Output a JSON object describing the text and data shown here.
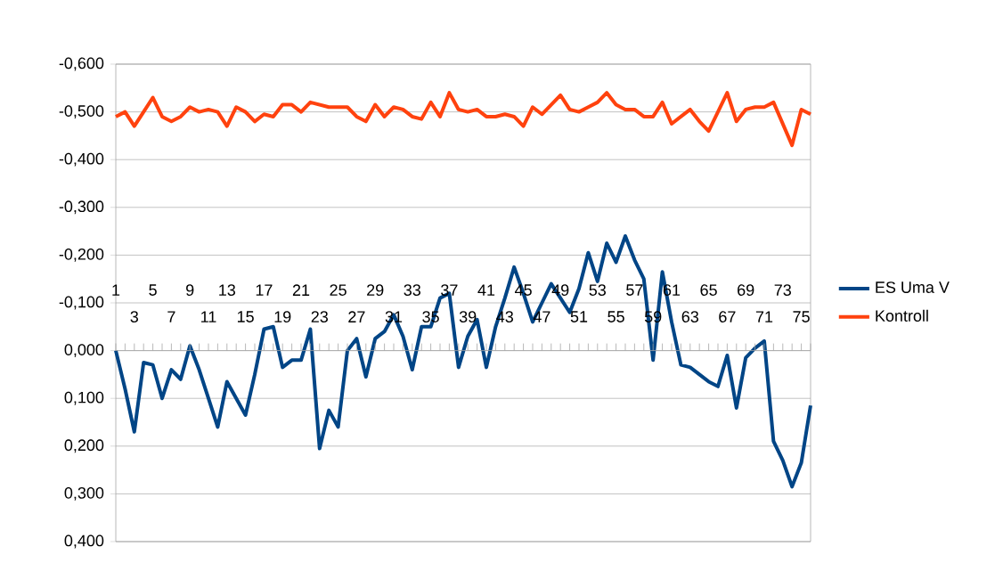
{
  "chart_data": {
    "type": "line",
    "categories": [
      "1",
      null,
      "3",
      null,
      "5",
      null,
      "7",
      null,
      "9",
      null,
      "11",
      null,
      "13",
      null,
      "15",
      null,
      "17",
      null,
      "19",
      null,
      "21",
      null,
      "23",
      null,
      "25",
      null,
      "27",
      null,
      "29",
      null,
      "31",
      null,
      "33",
      null,
      "35",
      null,
      "37",
      null,
      "39",
      null,
      "41",
      null,
      "43",
      null,
      "45",
      null,
      "47",
      null,
      "49",
      null,
      "51",
      null,
      "53",
      null,
      "55",
      null,
      "57",
      null,
      "59",
      null,
      "61",
      null,
      "63",
      null,
      "65",
      null,
      "67",
      null,
      "69",
      null,
      "71",
      null,
      "73",
      null,
      "75",
      null
    ],
    "series": [
      {
        "name": "ES Uma V",
        "color": "#004586",
        "values": [
          0.0,
          0.08,
          0.17,
          0.025,
          0.03,
          0.1,
          0.04,
          0.06,
          -0.01,
          0.04,
          0.1,
          0.16,
          0.065,
          0.1,
          0.135,
          0.05,
          -0.045,
          -0.05,
          0.035,
          0.02,
          0.02,
          -0.045,
          0.205,
          0.125,
          0.16,
          0.0,
          -0.025,
          0.055,
          -0.025,
          -0.04,
          -0.075,
          -0.03,
          0.04,
          -0.05,
          -0.05,
          -0.11,
          -0.12,
          0.035,
          -0.03,
          -0.065,
          0.035,
          -0.05,
          -0.11,
          -0.175,
          -0.12,
          -0.06,
          -0.1,
          -0.14,
          -0.11,
          -0.08,
          -0.13,
          -0.205,
          -0.145,
          -0.225,
          -0.185,
          -0.24,
          -0.19,
          -0.15,
          0.02,
          -0.165,
          -0.06,
          0.03,
          0.035,
          0.05,
          0.065,
          0.075,
          0.01,
          0.12,
          0.015,
          -0.005,
          -0.02,
          0.19,
          0.23,
          0.285,
          0.235,
          0.115
        ]
      },
      {
        "name": "Kontroll",
        "color": "#ff420e",
        "values": [
          -0.49,
          -0.5,
          -0.47,
          -0.5,
          -0.53,
          -0.49,
          -0.48,
          -0.49,
          -0.51,
          -0.5,
          -0.505,
          -0.5,
          -0.47,
          -0.51,
          -0.5,
          -0.48,
          -0.495,
          -0.49,
          -0.515,
          -0.515,
          -0.5,
          -0.52,
          -0.515,
          -0.51,
          -0.51,
          -0.51,
          -0.49,
          -0.48,
          -0.515,
          -0.49,
          -0.51,
          -0.505,
          -0.49,
          -0.485,
          -0.52,
          -0.49,
          -0.54,
          -0.505,
          -0.5,
          -0.505,
          -0.49,
          -0.49,
          -0.495,
          -0.49,
          -0.47,
          -0.51,
          -0.495,
          -0.515,
          -0.535,
          -0.505,
          -0.5,
          -0.51,
          -0.52,
          -0.54,
          -0.515,
          -0.505,
          -0.505,
          -0.49,
          -0.49,
          -0.52,
          -0.475,
          -0.49,
          -0.505,
          -0.48,
          -0.46,
          -0.5,
          -0.54,
          -0.48,
          -0.505,
          -0.51,
          -0.51,
          -0.52,
          -0.475,
          -0.43,
          -0.505,
          -0.495
        ]
      }
    ],
    "ylim": [
      0.4,
      -0.6
    ],
    "yticks": [
      {
        "value": -0.6,
        "label": "-0,600"
      },
      {
        "value": -0.5,
        "label": "-0,500"
      },
      {
        "value": -0.4,
        "label": "-0,400"
      },
      {
        "value": -0.3,
        "label": "-0,300"
      },
      {
        "value": -0.2,
        "label": "-0,200"
      },
      {
        "value": -0.1,
        "label": "-0,100"
      },
      {
        "value": 0,
        "label": "0,000"
      },
      {
        "value": 0.1,
        "label": "0,100"
      },
      {
        "value": 0.2,
        "label": "0,200"
      },
      {
        "value": 0.3,
        "label": "0,300"
      },
      {
        "value": 0.4,
        "label": "0,400"
      }
    ],
    "grid": "y",
    "legend": "right"
  }
}
